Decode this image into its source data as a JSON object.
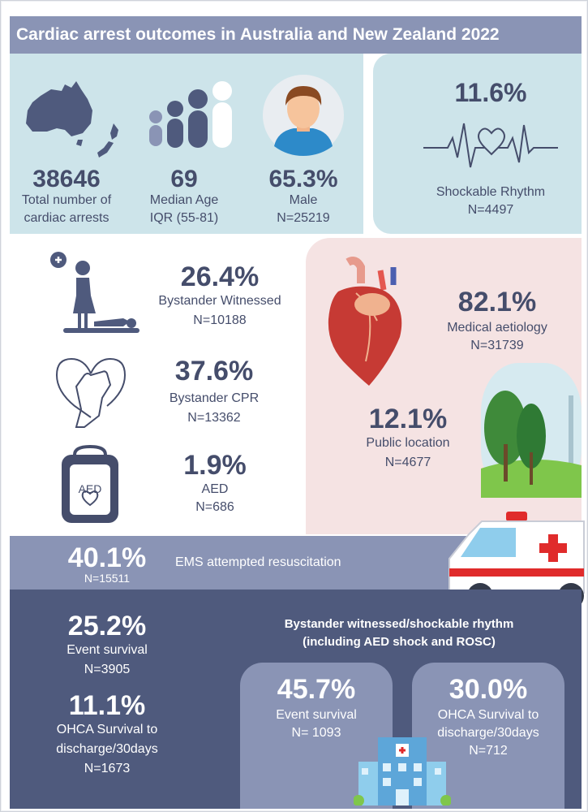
{
  "title": "Cardiac arrest outcomes in Australia and New Zealand 2022",
  "stats": {
    "total": {
      "value": "38646",
      "label1": "Total number of",
      "label2": "cardiac arrests"
    },
    "age": {
      "value": "69",
      "label1": "Median Age",
      "label2": "IQR (55-81)"
    },
    "male": {
      "value": "65.3%",
      "label1": "Male",
      "label2": "N=25219"
    },
    "shockable": {
      "value": "11.6%",
      "label1": "Shockable Rhythm",
      "label2": "N=4497"
    },
    "witnessed": {
      "value": "26.4%",
      "label1": "Bystander Witnessed",
      "label2": "N=10188"
    },
    "cpr": {
      "value": "37.6%",
      "label1": "Bystander CPR",
      "label2": "N=13362"
    },
    "aed": {
      "value": "1.9%",
      "label1": "AED",
      "label2": "N=686",
      "icon_text": "AED"
    },
    "medical": {
      "value": "82.1%",
      "label1": "Medical aetiology",
      "label2": "N=31739"
    },
    "public": {
      "value": "12.1%",
      "label1": "Public location",
      "label2": "N=4677"
    },
    "ems": {
      "value": "40.1%",
      "n": "N=15511",
      "label": "EMS attempted resuscitation"
    },
    "event": {
      "value": "25.2%",
      "label1": "Event survival",
      "label2": "N=3905"
    },
    "ohca": {
      "value": "11.1%",
      "label1": "OHCA Survival to",
      "label2": "discharge/30days",
      "label3": "N=1673"
    }
  },
  "subgroup": {
    "heading1": "Bystander witnessed/shockable rhythm",
    "heading2": "(including AED shock and ROSC)",
    "event": {
      "value": "45.7%",
      "label1": "Event survival",
      "label2": "N= 1093"
    },
    "ohca": {
      "value": "30.0%",
      "label1": "OHCA Survival to",
      "label2": "discharge/30days",
      "label3": "N=712"
    }
  },
  "colors": {
    "title_bar": "#8a94b5",
    "light_panel": "#cde4ea",
    "pink_panel": "#f5e3e3",
    "dark_panel": "#4f5a7d",
    "text": "#454d6b"
  },
  "icons": [
    "australia-nz-map-icon",
    "people-age-icon",
    "male-avatar-icon",
    "heartbeat-icon",
    "bystander-icon",
    "cpr-hands-icon",
    "aed-device-icon",
    "anatomical-heart-icon",
    "park-trees-icon",
    "ambulance-icon",
    "hospital-icon"
  ]
}
